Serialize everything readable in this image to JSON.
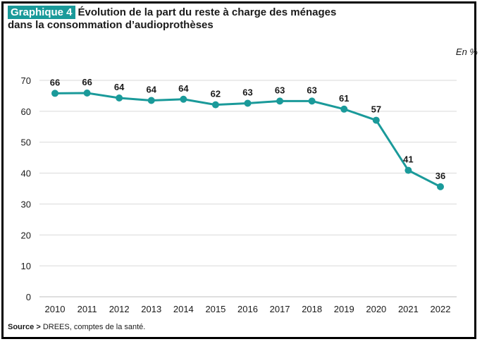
{
  "header": {
    "graph_label": "Graphique 4",
    "title_line1": "Évolution de la part du reste à charge des ménages",
    "title_line2": "dans la consommation d’audioprothèses"
  },
  "unit": "En %",
  "source": {
    "label": "Source >",
    "text": " DREES, comptes de la santé."
  },
  "colors": {
    "accent": "#1a9a9a",
    "line": "#1a9a9a",
    "grid": "#d9d9d9"
  },
  "chart_data": {
    "type": "line",
    "title": "Évolution de la part du reste à charge des ménages dans la consommation d’audioprothèses",
    "xlabel": "",
    "ylabel": "",
    "x": [
      "2010",
      "2011",
      "2012",
      "2013",
      "2014",
      "2015",
      "2016",
      "2017",
      "2018",
      "2019",
      "2020",
      "2021",
      "2022"
    ],
    "series": [
      {
        "values": [
          65.8,
          65.9,
          64.3,
          63.5,
          63.9,
          62.1,
          62.6,
          63.3,
          63.3,
          60.7,
          57.1,
          40.9,
          35.6
        ],
        "labels": [
          "66",
          "66",
          "64",
          "64",
          "64",
          "62",
          "63",
          "63",
          "63",
          "61",
          "57",
          "41",
          "36"
        ]
      }
    ],
    "ylim": [
      0,
      70
    ],
    "yticks": [
      0,
      10,
      20,
      30,
      40,
      50,
      60,
      70
    ],
    "grid": true,
    "legend": "none"
  }
}
